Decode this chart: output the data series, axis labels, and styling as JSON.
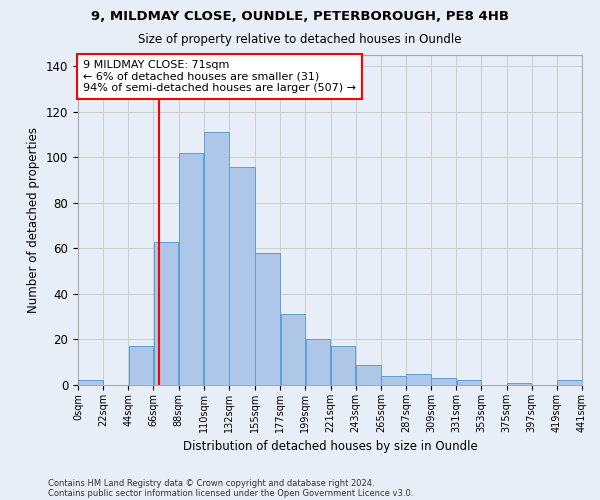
{
  "title_line1": "9, MILDMAY CLOSE, OUNDLE, PETERBOROUGH, PE8 4HB",
  "title_line2": "Size of property relative to detached houses in Oundle",
  "xlabel": "Distribution of detached houses by size in Oundle",
  "ylabel": "Number of detached properties",
  "footnote1": "Contains HM Land Registry data © Crown copyright and database right 2024.",
  "footnote2": "Contains public sector information licensed under the Open Government Licence v3.0.",
  "bar_edges": [
    0,
    22,
    44,
    66,
    88,
    110,
    132,
    155,
    177,
    199,
    221,
    243,
    265,
    287,
    309,
    331,
    353,
    375,
    397,
    419,
    441
  ],
  "bar_labels": [
    "0sqm",
    "22sqm",
    "44sqm",
    "66sqm",
    "88sqm",
    "110sqm",
    "132sqm",
    "155sqm",
    "177sqm",
    "199sqm",
    "221sqm",
    "243sqm",
    "265sqm",
    "287sqm",
    "309sqm",
    "331sqm",
    "353sqm",
    "375sqm",
    "397sqm",
    "419sqm",
    "441sqm"
  ],
  "bar_heights": [
    2,
    0,
    17,
    63,
    102,
    111,
    96,
    58,
    31,
    20,
    17,
    9,
    4,
    5,
    3,
    2,
    0,
    1,
    0,
    2
  ],
  "bar_color": "#aec6e8",
  "bar_edgecolor": "#5a9fd4",
  "vline_x": 71,
  "vline_color": "red",
  "annotation_text": "9 MILDMAY CLOSE: 71sqm\n← 6% of detached houses are smaller (31)\n94% of semi-detached houses are larger (507) →",
  "annotation_box_color": "white",
  "annotation_box_edgecolor": "red",
  "ylim": [
    0,
    145
  ],
  "yticks": [
    0,
    20,
    40,
    60,
    80,
    100,
    120,
    140
  ],
  "grid_color": "#cccccc",
  "bg_color": "#e8eef8"
}
